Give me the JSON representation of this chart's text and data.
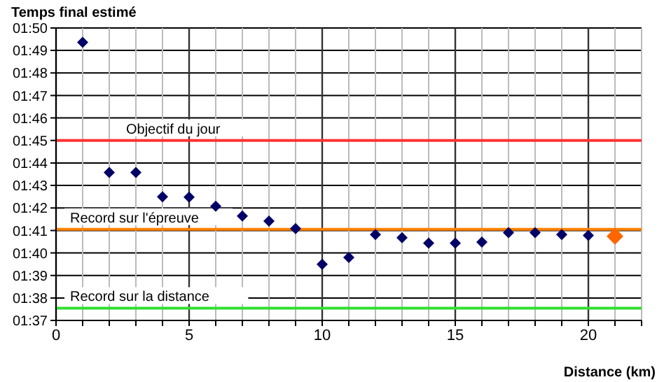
{
  "chart_data": {
    "type": "scatter",
    "ylabel": "Temps final estimé",
    "xlabel": "Distance (km)",
    "series": [
      {
        "color": "#000066",
        "x": [
          1,
          2,
          3,
          4,
          5,
          6,
          7,
          8,
          9,
          10,
          11,
          12,
          13,
          14,
          15,
          16,
          17,
          18,
          19,
          20
        ],
        "values": [
          1.8227,
          1.7263,
          1.7263,
          1.7083,
          1.708,
          1.7013,
          1.694,
          1.6903,
          1.6847,
          1.6583,
          1.6633,
          1.6803,
          1.678,
          1.674,
          1.674,
          1.6747,
          1.6817,
          1.6817,
          1.6803,
          1.6797
        ]
      },
      {
        "color": "#ff6600",
        "x": [
          21
        ],
        "values": [
          1.679
        ]
      }
    ],
    "marker": "diamond",
    "grid": true,
    "legend": false,
    "xlim": [
      0,
      22
    ],
    "xticks": [
      0,
      {
        "value": 1,
        "label": null
      },
      {
        "value": 2,
        "label": null
      },
      {
        "value": 3,
        "label": null
      },
      {
        "value": 4,
        "label": null
      },
      5,
      {
        "value": 6,
        "label": null
      },
      {
        "value": 7,
        "label": null
      },
      {
        "value": 8,
        "label": null
      },
      {
        "value": 9,
        "label": null
      },
      10,
      {
        "value": 11,
        "label": null
      },
      {
        "value": 12,
        "label": null
      },
      {
        "value": 13,
        "label": null
      },
      {
        "value": 14,
        "label": null
      },
      15,
      {
        "value": 16,
        "label": null
      },
      {
        "value": 17,
        "label": null
      },
      {
        "value": 18,
        "label": null
      },
      {
        "value": 19,
        "label": null
      },
      20,
      {
        "value": 21,
        "label": null
      },
      {
        "value": 22,
        "label": null
      }
    ],
    "ylim": [
      1.6167,
      1.8333
    ],
    "yticks": [
      {
        "value": 1.6167,
        "label": "01:37"
      },
      {
        "value": 1.6333,
        "label": "01:38"
      },
      {
        "value": 1.65,
        "label": "01:39"
      },
      {
        "value": 1.6667,
        "label": "01:40"
      },
      {
        "value": 1.6833,
        "label": "01:41"
      },
      {
        "value": 1.7,
        "label": "01:42"
      },
      {
        "value": 1.7167,
        "label": "01:43"
      },
      {
        "value": 1.7333,
        "label": "01:44"
      },
      {
        "value": 1.75,
        "label": "01:45"
      },
      {
        "value": 1.7667,
        "label": "01:46"
      },
      {
        "value": 1.7833,
        "label": "01:47"
      },
      {
        "value": 1.8,
        "label": "01:48"
      },
      {
        "value": 1.8167,
        "label": "01:49"
      },
      {
        "value": 1.8333,
        "label": "01:50"
      }
    ],
    "ref_lines": [
      {
        "axis": "y",
        "value": 1.75,
        "label": "Objectif du jour",
        "color": "#ff3333"
      },
      {
        "axis": "y",
        "value": 1.6842,
        "label": "Record sur l'épreuve",
        "color": "#ff8000"
      },
      {
        "axis": "y",
        "value": 1.6258,
        "label": "Record sur la distance",
        "color": "#33dd33"
      }
    ]
  }
}
